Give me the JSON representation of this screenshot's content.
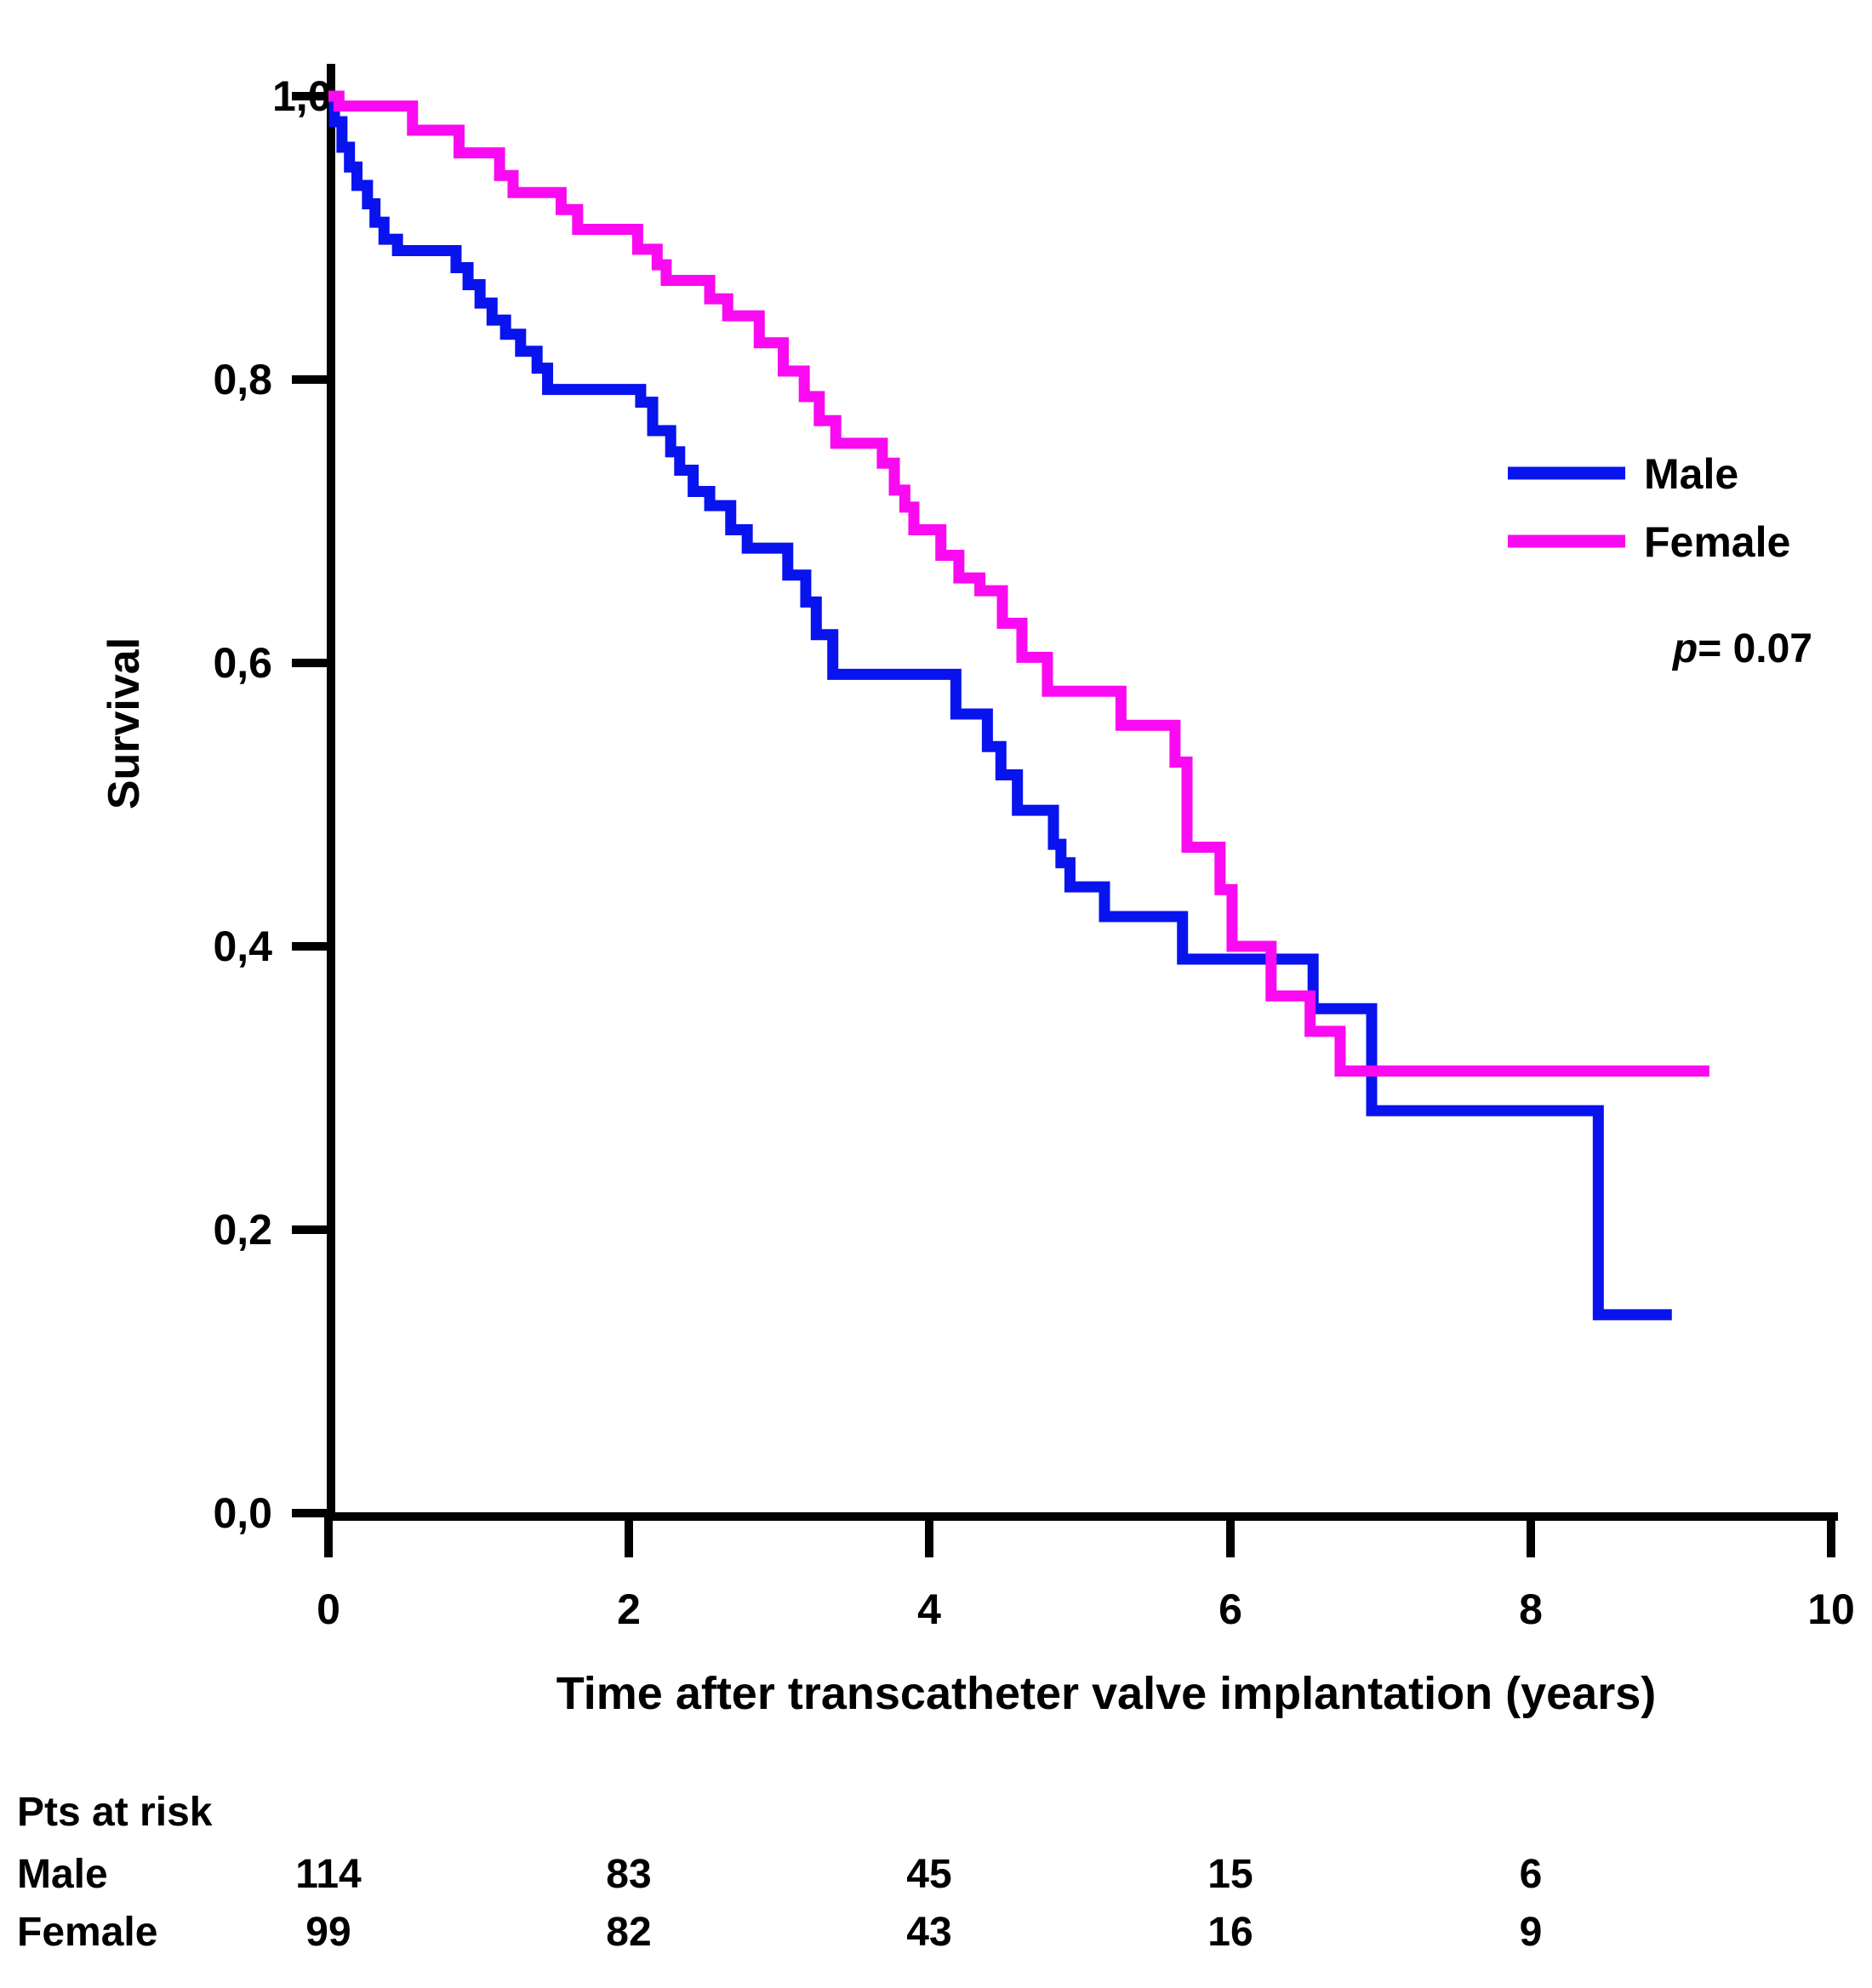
{
  "chart_data": {
    "type": "line",
    "subtype": "kaplan-meier-step",
    "title": "",
    "xlabel": "Time after transcatheter valve implantation (years)",
    "ylabel": "Survival",
    "xlim": [
      0,
      10
    ],
    "ylim": [
      0.0,
      1.0
    ],
    "grid": "off",
    "legend_position": "right-upper",
    "x_ticks": [
      "0",
      "2",
      "4",
      "6",
      "8",
      "10"
    ],
    "x_tick_values": [
      0,
      2,
      4,
      6,
      8,
      10
    ],
    "y_ticks": [
      "1,0",
      "0,8",
      "0,6",
      "0,4",
      "0,2",
      "0,0"
    ],
    "y_tick_values": [
      1.0,
      0.8,
      0.6,
      0.4,
      0.2,
      0.0
    ],
    "p_value_italic": "p",
    "p_value_rest": "= 0.07",
    "legend": [
      {
        "name": "Male",
        "color": "#0813ee"
      },
      {
        "name": "Female",
        "color": "#fa0af0"
      }
    ],
    "series": [
      {
        "name": "Male",
        "color": "#0813ee",
        "points": [
          [
            0.0,
            1.0
          ],
          [
            0.04,
            0.982
          ],
          [
            0.09,
            0.964
          ],
          [
            0.14,
            0.95
          ],
          [
            0.19,
            0.937
          ],
          [
            0.26,
            0.924
          ],
          [
            0.31,
            0.911
          ],
          [
            0.37,
            0.899
          ],
          [
            0.46,
            0.891
          ],
          [
            0.85,
            0.879
          ],
          [
            0.93,
            0.867
          ],
          [
            1.01,
            0.854
          ],
          [
            1.09,
            0.842
          ],
          [
            1.18,
            0.832
          ],
          [
            1.28,
            0.82
          ],
          [
            1.39,
            0.808
          ],
          [
            1.46,
            0.793
          ],
          [
            2.08,
            0.784
          ],
          [
            2.16,
            0.764
          ],
          [
            2.28,
            0.749
          ],
          [
            2.34,
            0.736
          ],
          [
            2.43,
            0.721
          ],
          [
            2.54,
            0.711
          ],
          [
            2.68,
            0.694
          ],
          [
            2.79,
            0.681
          ],
          [
            3.06,
            0.662
          ],
          [
            3.18,
            0.643
          ],
          [
            3.25,
            0.62
          ],
          [
            3.36,
            0.592
          ],
          [
            4.18,
            0.564
          ],
          [
            4.39,
            0.541
          ],
          [
            4.48,
            0.521
          ],
          [
            4.59,
            0.496
          ],
          [
            4.83,
            0.472
          ],
          [
            4.88,
            0.459
          ],
          [
            4.94,
            0.442
          ],
          [
            5.17,
            0.421
          ],
          [
            5.69,
            0.391
          ],
          [
            6.56,
            0.356
          ],
          [
            6.95,
            0.284
          ],
          [
            8.46,
            0.14
          ],
          [
            8.95,
            0.14
          ]
        ]
      },
      {
        "name": "Female",
        "color": "#fa0af0",
        "points": [
          [
            0.0,
            1.0
          ],
          [
            0.07,
            0.993
          ],
          [
            0.56,
            0.976
          ],
          [
            0.87,
            0.96
          ],
          [
            1.14,
            0.944
          ],
          [
            1.23,
            0.932
          ],
          [
            1.55,
            0.92
          ],
          [
            1.66,
            0.906
          ],
          [
            2.06,
            0.892
          ],
          [
            2.19,
            0.881
          ],
          [
            2.25,
            0.87
          ],
          [
            2.54,
            0.857
          ],
          [
            2.66,
            0.845
          ],
          [
            2.87,
            0.826
          ],
          [
            3.03,
            0.806
          ],
          [
            3.17,
            0.788
          ],
          [
            3.27,
            0.771
          ],
          [
            3.38,
            0.755
          ],
          [
            3.69,
            0.741
          ],
          [
            3.77,
            0.722
          ],
          [
            3.84,
            0.71
          ],
          [
            3.9,
            0.694
          ],
          [
            4.08,
            0.676
          ],
          [
            4.2,
            0.66
          ],
          [
            4.34,
            0.651
          ],
          [
            4.49,
            0.628
          ],
          [
            4.62,
            0.604
          ],
          [
            4.79,
            0.58
          ],
          [
            5.28,
            0.556
          ],
          [
            5.64,
            0.53
          ],
          [
            5.72,
            0.47
          ],
          [
            5.94,
            0.44
          ],
          [
            6.02,
            0.4
          ],
          [
            6.28,
            0.365
          ],
          [
            6.54,
            0.34
          ],
          [
            6.74,
            0.312
          ],
          [
            9.2,
            0.312
          ]
        ]
      }
    ]
  },
  "risk_table": {
    "header": "Pts at risk",
    "time_points": [
      0,
      2,
      4,
      6,
      8
    ],
    "rows": [
      {
        "label": "Male",
        "counts": [
          "114",
          "83",
          "45",
          "15",
          "6"
        ]
      },
      {
        "label": "Female",
        "counts": [
          "99",
          "82",
          "43",
          "16",
          "9"
        ]
      }
    ]
  }
}
